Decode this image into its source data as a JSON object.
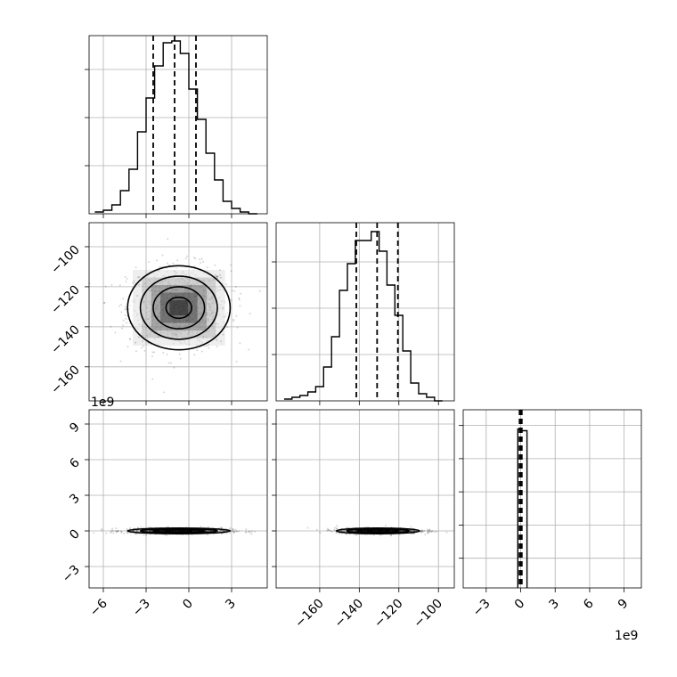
{
  "chart_data": {
    "type": "corner",
    "grid": true,
    "x_offset_label": "1e9",
    "y_offset_label": "1e9",
    "panels": [
      {
        "id": "hist-a",
        "type": "histogram",
        "xlim": [
          -7,
          5.5
        ],
        "ylim": [
          0,
          1.0
        ],
        "yticks": [
          0.27,
          0.54,
          0.81
        ],
        "bin_edges": [
          -6.6,
          -6.0,
          -5.4,
          -4.8,
          -4.2,
          -3.6,
          -3.0,
          -2.4,
          -1.8,
          -1.2,
          -0.6,
          0.0,
          0.6,
          1.2,
          1.8,
          2.4,
          3.0,
          3.6,
          4.2,
          4.8
        ],
        "counts": [
          0.01,
          0.02,
          0.05,
          0.13,
          0.25,
          0.46,
          0.65,
          0.83,
          0.96,
          0.97,
          0.9,
          0.7,
          0.53,
          0.34,
          0.19,
          0.07,
          0.03,
          0.01,
          0.0
        ],
        "quantiles": [
          -2.5,
          -1.0,
          0.5
        ]
      },
      {
        "id": "hist-b",
        "type": "histogram",
        "xlim": [
          -182,
          -92
        ],
        "ylim": [
          0,
          1.0
        ],
        "yticks": [
          0.26,
          0.52,
          0.78
        ],
        "bin_edges": [
          -178,
          -174,
          -170,
          -166,
          -162,
          -158,
          -154,
          -150,
          -146,
          -142,
          -138,
          -134,
          -130,
          -126,
          -122,
          -118,
          -114,
          -110,
          -106,
          -102,
          -98
        ],
        "counts": [
          0.01,
          0.02,
          0.03,
          0.05,
          0.08,
          0.19,
          0.36,
          0.62,
          0.77,
          0.9,
          0.9,
          0.95,
          0.84,
          0.65,
          0.48,
          0.28,
          0.1,
          0.04,
          0.02,
          0.0
        ],
        "quantiles": [
          -141.5,
          -131.0,
          -120.5
        ]
      },
      {
        "id": "hist-c",
        "type": "histogram",
        "xlim": [
          -5,
          10.5
        ],
        "ylim": [
          0,
          10.2
        ],
        "yticks": [
          1.7,
          3.6,
          5.5,
          7.4,
          9.3
        ],
        "bin_edges": [
          -0.25,
          0.0,
          0.55
        ],
        "counts": [
          9.1,
          9.0
        ],
        "quantiles": [
          -0.1,
          0.0,
          0.1
        ]
      },
      {
        "id": "scatter-ab",
        "type": "2d-density",
        "xlim": [
          -7,
          5.5
        ],
        "ylim": [
          -177,
          -88
        ],
        "center": [
          -0.7,
          -130.5
        ],
        "spread": [
          1.8,
          10.5
        ],
        "contour_radii": [
          0.5,
          1.0,
          1.5,
          2.0
        ]
      },
      {
        "id": "scatter-ac",
        "type": "2d-density",
        "xlim": [
          -7,
          5.5
        ],
        "ylim": [
          -4.8,
          10.2
        ],
        "center": [
          -0.7,
          0.0
        ],
        "spread": [
          1.8,
          0.12
        ],
        "contour_radii": [
          0.5,
          1.0,
          1.5,
          2.0
        ]
      },
      {
        "id": "scatter-bc",
        "type": "2d-density",
        "xlim": [
          -182,
          -92
        ],
        "ylim": [
          -4.8,
          10.2
        ],
        "center": [
          -130.5,
          0.0
        ],
        "spread": [
          10.5,
          0.12
        ],
        "contour_radii": [
          0.5,
          1.0,
          1.5,
          2.0
        ]
      }
    ],
    "axis_a_ticks": [
      -6,
      -3,
      0,
      3
    ],
    "axis_a_tick_labels": [
      "−6",
      "−3",
      "0",
      "3"
    ],
    "axis_b_ticks": [
      -160,
      -140,
      -120,
      -100
    ],
    "axis_b_tick_labels": [
      "−160",
      "−140",
      "−120",
      "−100"
    ],
    "axis_c_ticks": [
      -3,
      0,
      3,
      6,
      9
    ],
    "axis_c_tick_labels": [
      "−3",
      "0",
      "3",
      "6",
      "9"
    ]
  }
}
